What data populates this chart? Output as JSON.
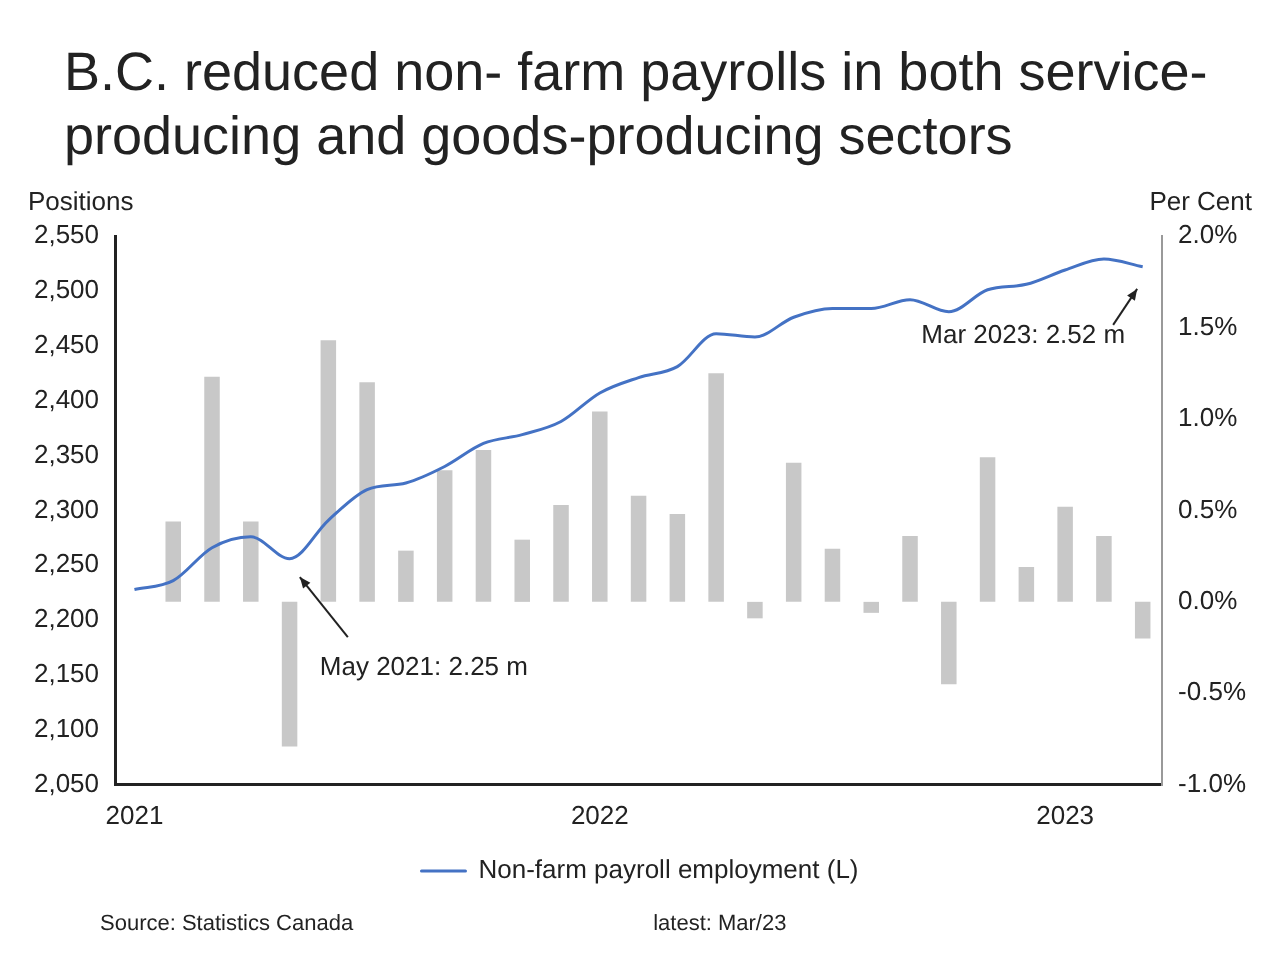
{
  "chart_data": {
    "type": "bar",
    "title": "B.C. reduced non- farm payrolls in both service-producing and goods-producing sectors",
    "ylabel": "Positions",
    "y2label": "Per Cent",
    "categories": [
      "2021",
      null,
      null,
      null,
      null,
      null,
      null,
      null,
      null,
      null,
      null,
      null,
      "2022",
      null,
      null,
      null,
      null,
      null,
      null,
      null,
      null,
      null,
      null,
      null,
      "2023",
      null,
      null
    ],
    "series": [
      {
        "type": "line",
        "name": "Non-farm payroll employment (L)",
        "color": "#4472c4",
        "values": [
          2228,
          2236,
          2266,
          2276,
          2256,
          2291,
          2319,
          2325,
          2340,
          2361,
          2369,
          2381,
          2407,
          2421,
          2431,
          2461,
          2458,
          2476,
          2484,
          2484,
          2492,
          2481,
          2501,
          2506,
          2519,
          2529,
          2522
        ]
      },
      {
        "axis": "y2",
        "color": "#c8c8c8",
        "values": [
          null,
          0.44,
          1.23,
          0.44,
          -0.79,
          1.43,
          1.2,
          0.28,
          0.72,
          0.83,
          0.34,
          0.53,
          1.04,
          0.58,
          0.48,
          1.25,
          -0.09,
          0.76,
          0.29,
          -0.06,
          0.36,
          -0.45,
          0.79,
          0.19,
          0.52,
          0.36,
          -0.2
        ]
      }
    ],
    "ylim": [
      2050,
      2550
    ],
    "yticks": [
      {
        "value": 2050,
        "label": "2,050"
      },
      {
        "value": 2100,
        "label": "2,100"
      },
      {
        "value": 2150,
        "label": "2,150"
      },
      {
        "value": 2200,
        "label": "2,200"
      },
      {
        "value": 2250,
        "label": "2,250"
      },
      {
        "value": 2300,
        "label": "2,300"
      },
      {
        "value": 2350,
        "label": "2,350"
      },
      {
        "value": 2400,
        "label": "2,400"
      },
      {
        "value": 2450,
        "label": "2,450"
      },
      {
        "value": 2500,
        "label": "2,500"
      },
      {
        "value": 2550,
        "label": "2,550"
      }
    ],
    "y2lim": [
      -1,
      2
    ],
    "y2ticks": [
      {
        "value": -1,
        "label": "-1.0%"
      },
      {
        "value": -0.5,
        "label": "-0.5%"
      },
      {
        "value": 0,
        "label": "0.0%"
      },
      {
        "value": 0.5,
        "label": "0.5%"
      },
      {
        "value": 1,
        "label": "1.0%"
      },
      {
        "value": 1.5,
        "label": "1.5%"
      },
      {
        "value": 2,
        "label": "2.0%"
      }
    ],
    "annotations": [
      "May 2021: 2.25 m",
      "Mar 2023: 2.52 m",
      "Source: Statistics Canada",
      "latest: Mar/23"
    ],
    "legend": "bottom",
    "grid": false,
    "marker": "none"
  }
}
